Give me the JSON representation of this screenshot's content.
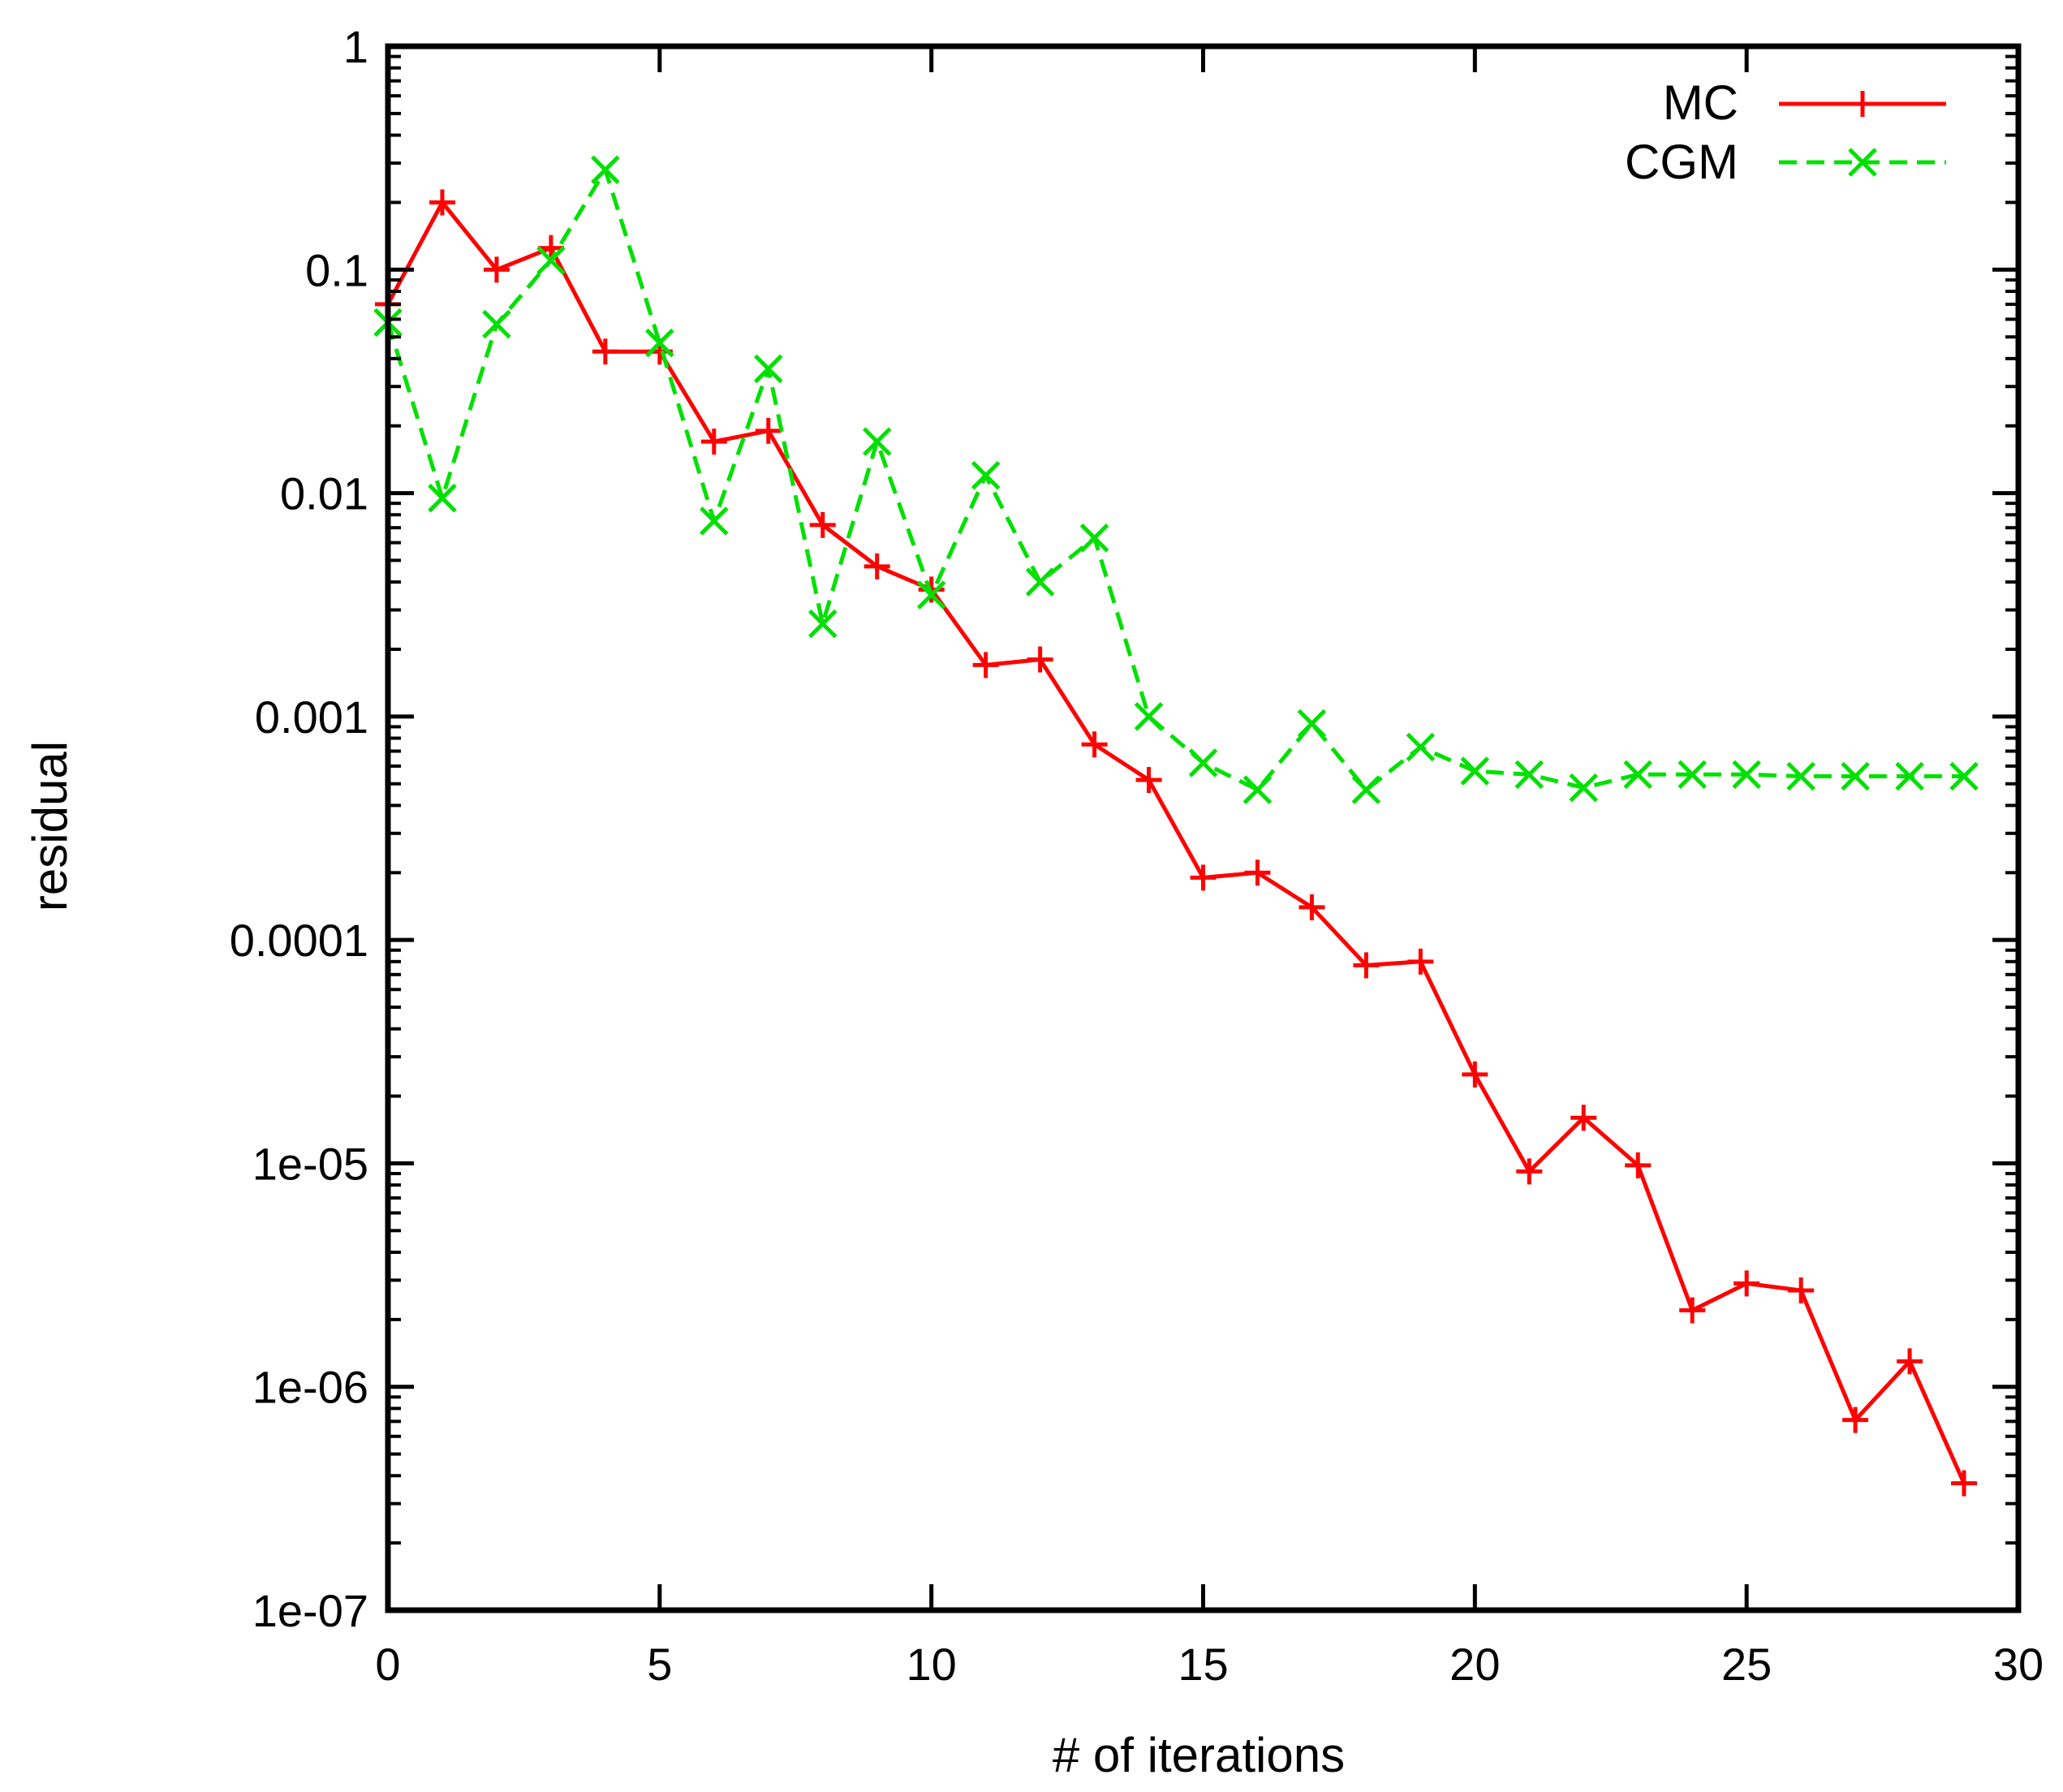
{
  "chart_data": {
    "type": "line",
    "title": "",
    "xlabel": "# of iterations",
    "ylabel": "residual",
    "xlim": [
      0,
      30
    ],
    "ylim": [
      1e-07,
      1
    ],
    "yscale": "log",
    "x_ticks": [
      0,
      5,
      10,
      15,
      20,
      25,
      30
    ],
    "x_tick_labels": [
      "0",
      "5",
      "10",
      "15",
      "20",
      "25",
      "30"
    ],
    "y_ticks": [
      1e-07,
      1e-06,
      1e-05,
      0.0001,
      0.001,
      0.01,
      0.1,
      1
    ],
    "y_tick_labels": [
      "1e-07",
      "1e-06",
      "1e-05",
      "0.0001",
      "0.001",
      "0.01",
      "0.1",
      "1"
    ],
    "grid": false,
    "legend_position": "top-right",
    "series": [
      {
        "name": "MC",
        "color": "#ff0000",
        "line_style": "solid",
        "marker": "plus",
        "x": [
          0,
          1,
          2,
          3,
          4,
          5,
          6,
          7,
          8,
          9,
          10,
          11,
          12,
          13,
          14,
          15,
          16,
          17,
          18,
          19,
          20,
          21,
          22,
          23,
          24,
          25,
          26,
          27,
          28,
          29
        ],
        "values": [
          0.07,
          0.2,
          0.1,
          0.125,
          0.043,
          0.043,
          0.017,
          0.019,
          0.0072,
          0.0047,
          0.0037,
          0.0017,
          0.0018,
          0.00075,
          0.00052,
          0.00019,
          0.0002,
          0.00014,
          7.7e-05,
          8e-05,
          2.5e-05,
          9.2e-06,
          1.6e-05,
          9.8e-06,
          2.2e-06,
          2.9e-06,
          2.7e-06,
          7.1e-07,
          1.3e-06,
          3.7e-07
        ]
      },
      {
        "name": "CGM",
        "color": "#00e000",
        "line_style": "dashed",
        "marker": "cross",
        "x": [
          0,
          1,
          2,
          3,
          4,
          5,
          6,
          7,
          8,
          9,
          10,
          11,
          12,
          13,
          14,
          15,
          16,
          17,
          18,
          19,
          20,
          21,
          22,
          23,
          24,
          25,
          26,
          27,
          28,
          29
        ],
        "values": [
          0.058,
          0.0095,
          0.057,
          0.11,
          0.28,
          0.047,
          0.0075,
          0.036,
          0.0026,
          0.017,
          0.0035,
          0.012,
          0.004,
          0.0063,
          0.001,
          0.00062,
          0.00047,
          0.00093,
          0.00047,
          0.00073,
          0.00057,
          0.00055,
          0.00048,
          0.00055,
          0.00055,
          0.00055,
          0.00054,
          0.00054,
          0.00054,
          0.00054
        ]
      }
    ]
  }
}
